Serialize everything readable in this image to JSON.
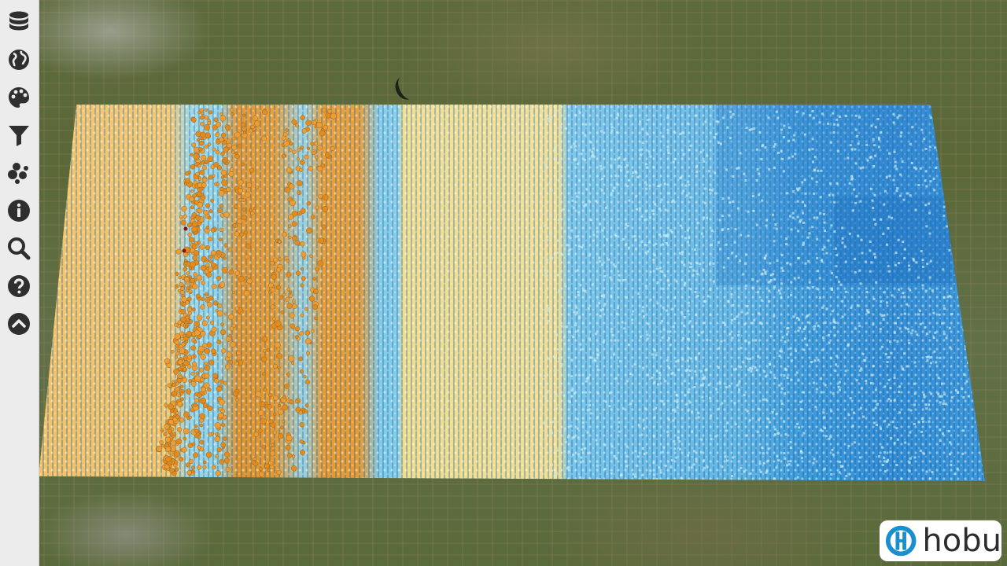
{
  "viewer": {
    "base_layer": "satellite-terrain",
    "colors": {
      "sidebar_bg": "#ececec",
      "icon_color": "#2f2f2f",
      "ramp_low": "#1a6fc4",
      "ramp_mid_low": "#78c8e6",
      "ramp_mid": "#f0e6a0",
      "ramp_mid_high": "#f3c460",
      "ramp_high": "#e48b1f",
      "outlier": "#8b1010"
    }
  },
  "sidebar": {
    "tools": [
      {
        "name": "database-icon"
      },
      {
        "name": "globe-icon"
      },
      {
        "name": "palette-icon"
      },
      {
        "name": "filter-icon"
      },
      {
        "name": "cloud-points-icon"
      },
      {
        "name": "info-icon"
      },
      {
        "name": "search-icon"
      },
      {
        "name": "help-icon"
      },
      {
        "name": "chevron-up-icon"
      }
    ]
  },
  "logo": {
    "text": "hobu",
    "brand_color": "#1a8fd0"
  }
}
